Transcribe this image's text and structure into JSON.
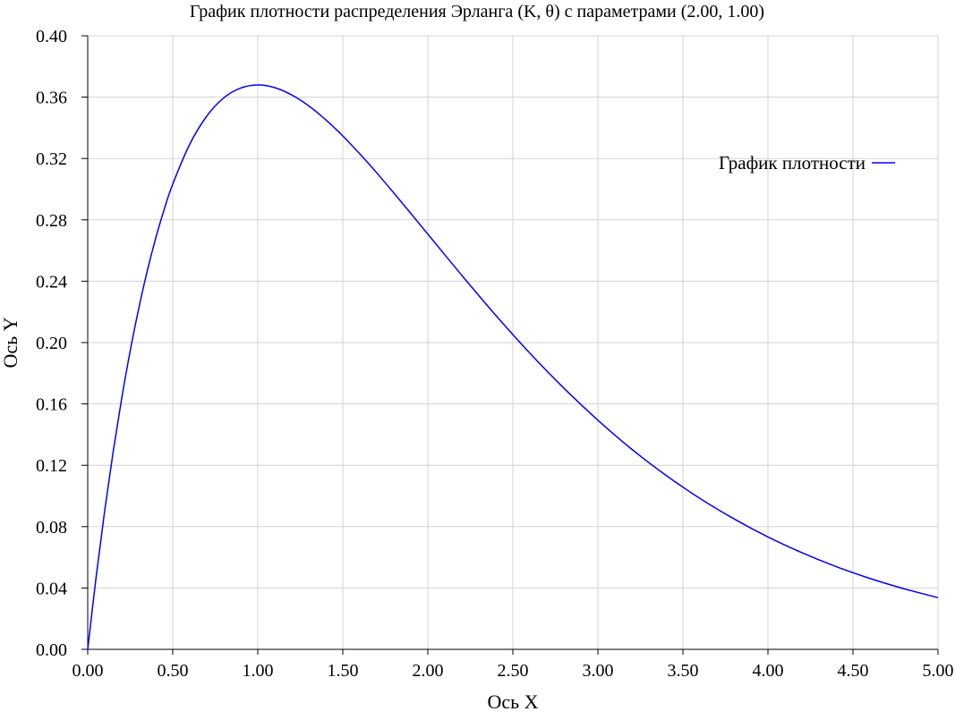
{
  "chart_data": {
    "type": "line",
    "title": "График плотности распределения Эрланга (K, θ) с параметрами (2.00, 1.00)",
    "xlabel": "Ось X",
    "ylabel": "Ось Y",
    "xlim": [
      0,
      5
    ],
    "ylim": [
      0,
      0.4
    ],
    "x_ticks": [
      "0.00",
      "0.50",
      "1.00",
      "1.50",
      "2.00",
      "2.50",
      "3.00",
      "3.50",
      "4.00",
      "4.50",
      "5.00"
    ],
    "y_ticks": [
      "0.00",
      "0.04",
      "0.08",
      "0.12",
      "0.16",
      "0.20",
      "0.24",
      "0.28",
      "0.32",
      "0.36",
      "0.40"
    ],
    "grid": true,
    "legend_position": "top-right",
    "series": [
      {
        "name": "График плотности",
        "color": "#0000ff",
        "x": [
          0,
          0.05,
          0.1,
          0.15,
          0.2,
          0.25,
          0.3,
          0.35,
          0.4,
          0.45,
          0.5,
          0.6,
          0.7,
          0.8,
          0.9,
          1.0,
          1.1,
          1.2,
          1.3,
          1.4,
          1.5,
          1.6,
          1.7,
          1.8,
          1.9,
          2.0,
          2.2,
          2.4,
          2.6,
          2.8,
          3.0,
          3.2,
          3.4,
          3.6,
          3.8,
          4.0,
          4.2,
          4.4,
          4.6,
          4.8,
          5.0
        ],
        "y": [
          0,
          0.0476,
          0.0905,
          0.1291,
          0.1637,
          0.1947,
          0.2222,
          0.2466,
          0.2681,
          0.2869,
          0.3033,
          0.3293,
          0.3476,
          0.3595,
          0.3659,
          0.3679,
          0.3662,
          0.3614,
          0.3543,
          0.3452,
          0.3347,
          0.323,
          0.3106,
          0.2975,
          0.2842,
          0.2707,
          0.2438,
          0.2177,
          0.1931,
          0.1703,
          0.1494,
          0.1304,
          0.1135,
          0.0984,
          0.0851,
          0.0733,
          0.063,
          0.054,
          0.0462,
          0.0395,
          0.0337
        ]
      }
    ]
  },
  "colors": {
    "series": "#0000ff",
    "grid": "#d3d3d3",
    "axis": "#000000"
  }
}
